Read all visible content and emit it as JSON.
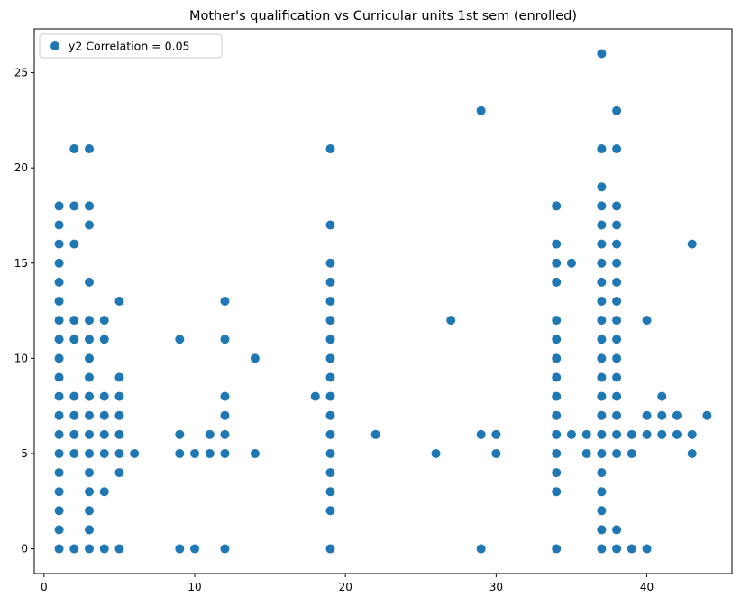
{
  "chart_data": {
    "type": "scatter",
    "title": "Mother's qualification vs Curricular units 1st sem (enrolled)",
    "xlabel": "",
    "ylabel": "",
    "xlim": [
      -0.65,
      45.65
    ],
    "ylim": [
      -1.3,
      27.3
    ],
    "x_ticks": [
      0,
      10,
      20,
      30,
      40
    ],
    "y_ticks": [
      0,
      5,
      10,
      15,
      20,
      25
    ],
    "grid": false,
    "legend_position": "top-left",
    "series": [
      {
        "name": "y2 Correlation = 0.05",
        "color": "#1f77b4",
        "points": [
          [
            1,
            0
          ],
          [
            1,
            1
          ],
          [
            1,
            2
          ],
          [
            1,
            3
          ],
          [
            1,
            4
          ],
          [
            1,
            5
          ],
          [
            1,
            6
          ],
          [
            1,
            7
          ],
          [
            1,
            8
          ],
          [
            1,
            9
          ],
          [
            1,
            10
          ],
          [
            1,
            11
          ],
          [
            1,
            12
          ],
          [
            1,
            13
          ],
          [
            1,
            14
          ],
          [
            1,
            15
          ],
          [
            1,
            16
          ],
          [
            1,
            17
          ],
          [
            1,
            18
          ],
          [
            2,
            0
          ],
          [
            2,
            5
          ],
          [
            2,
            6
          ],
          [
            2,
            7
          ],
          [
            2,
            8
          ],
          [
            2,
            11
          ],
          [
            2,
            12
          ],
          [
            2,
            16
          ],
          [
            2,
            18
          ],
          [
            2,
            21
          ],
          [
            3,
            0
          ],
          [
            3,
            1
          ],
          [
            3,
            2
          ],
          [
            3,
            3
          ],
          [
            3,
            4
          ],
          [
            3,
            5
          ],
          [
            3,
            6
          ],
          [
            3,
            7
          ],
          [
            3,
            8
          ],
          [
            3,
            9
          ],
          [
            3,
            10
          ],
          [
            3,
            11
          ],
          [
            3,
            12
          ],
          [
            3,
            14
          ],
          [
            3,
            17
          ],
          [
            3,
            18
          ],
          [
            3,
            21
          ],
          [
            4,
            0
          ],
          [
            4,
            3
          ],
          [
            4,
            5
          ],
          [
            4,
            6
          ],
          [
            4,
            7
          ],
          [
            4,
            8
          ],
          [
            4,
            11
          ],
          [
            4,
            12
          ],
          [
            5,
            0
          ],
          [
            5,
            4
          ],
          [
            5,
            5
          ],
          [
            5,
            6
          ],
          [
            5,
            7
          ],
          [
            5,
            8
          ],
          [
            5,
            9
          ],
          [
            5,
            13
          ],
          [
            6,
            5
          ],
          [
            9,
            0
          ],
          [
            9,
            5
          ],
          [
            9,
            6
          ],
          [
            9,
            11
          ],
          [
            10,
            0
          ],
          [
            10,
            5
          ],
          [
            11,
            5
          ],
          [
            11,
            6
          ],
          [
            12,
            0
          ],
          [
            12,
            5
          ],
          [
            12,
            6
          ],
          [
            12,
            7
          ],
          [
            12,
            8
          ],
          [
            12,
            11
          ],
          [
            12,
            13
          ],
          [
            14,
            5
          ],
          [
            14,
            10
          ],
          [
            18,
            8
          ],
          [
            19,
            0
          ],
          [
            19,
            2
          ],
          [
            19,
            3
          ],
          [
            19,
            4
          ],
          [
            19,
            5
          ],
          [
            19,
            6
          ],
          [
            19,
            7
          ],
          [
            19,
            8
          ],
          [
            19,
            9
          ],
          [
            19,
            10
          ],
          [
            19,
            11
          ],
          [
            19,
            12
          ],
          [
            19,
            13
          ],
          [
            19,
            14
          ],
          [
            19,
            15
          ],
          [
            19,
            17
          ],
          [
            19,
            21
          ],
          [
            22,
            6
          ],
          [
            26,
            5
          ],
          [
            27,
            12
          ],
          [
            29,
            0
          ],
          [
            29,
            6
          ],
          [
            29,
            23
          ],
          [
            30,
            5
          ],
          [
            30,
            6
          ],
          [
            34,
            0
          ],
          [
            34,
            3
          ],
          [
            34,
            4
          ],
          [
            34,
            5
          ],
          [
            34,
            6
          ],
          [
            34,
            7
          ],
          [
            34,
            8
          ],
          [
            34,
            9
          ],
          [
            34,
            10
          ],
          [
            34,
            11
          ],
          [
            34,
            12
          ],
          [
            34,
            14
          ],
          [
            34,
            15
          ],
          [
            34,
            16
          ],
          [
            34,
            18
          ],
          [
            35,
            6
          ],
          [
            35,
            15
          ],
          [
            36,
            5
          ],
          [
            36,
            6
          ],
          [
            37,
            0
          ],
          [
            37,
            1
          ],
          [
            37,
            2
          ],
          [
            37,
            3
          ],
          [
            37,
            4
          ],
          [
            37,
            5
          ],
          [
            37,
            6
          ],
          [
            37,
            7
          ],
          [
            37,
            8
          ],
          [
            37,
            9
          ],
          [
            37,
            10
          ],
          [
            37,
            11
          ],
          [
            37,
            12
          ],
          [
            37,
            13
          ],
          [
            37,
            14
          ],
          [
            37,
            15
          ],
          [
            37,
            16
          ],
          [
            37,
            17
          ],
          [
            37,
            18
          ],
          [
            37,
            19
          ],
          [
            37,
            21
          ],
          [
            37,
            26
          ],
          [
            38,
            0
          ],
          [
            38,
            1
          ],
          [
            38,
            5
          ],
          [
            38,
            6
          ],
          [
            38,
            7
          ],
          [
            38,
            8
          ],
          [
            38,
            9
          ],
          [
            38,
            10
          ],
          [
            38,
            11
          ],
          [
            38,
            12
          ],
          [
            38,
            13
          ],
          [
            38,
            14
          ],
          [
            38,
            15
          ],
          [
            38,
            16
          ],
          [
            38,
            17
          ],
          [
            38,
            18
          ],
          [
            38,
            21
          ],
          [
            38,
            23
          ],
          [
            39,
            0
          ],
          [
            39,
            5
          ],
          [
            39,
            6
          ],
          [
            40,
            0
          ],
          [
            40,
            6
          ],
          [
            40,
            7
          ],
          [
            40,
            12
          ],
          [
            41,
            6
          ],
          [
            41,
            7
          ],
          [
            41,
            8
          ],
          [
            42,
            6
          ],
          [
            42,
            7
          ],
          [
            43,
            5
          ],
          [
            43,
            6
          ],
          [
            43,
            16
          ],
          [
            44,
            7
          ]
        ]
      }
    ]
  }
}
